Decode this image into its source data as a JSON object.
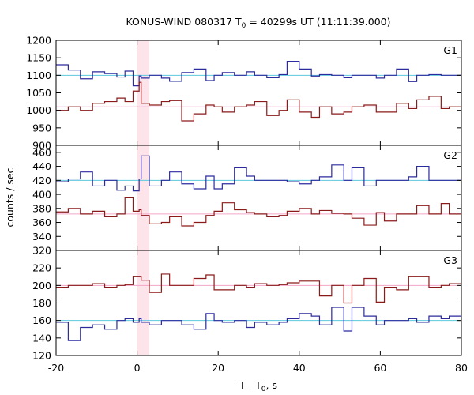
{
  "chart_data": {
    "type": "line",
    "title": {
      "prefix": "KONUS-WIND 080317 T",
      "sub": "0",
      "suffix": " = 40299s UT (11:11:39.000)"
    },
    "xlabel": {
      "prefix": "T - T",
      "sub": "0",
      "suffix": ", s"
    },
    "ylabel": "counts / sec",
    "xlim": [
      -20,
      80
    ],
    "x_ticks": [
      -20,
      0,
      20,
      40,
      60,
      80
    ],
    "x_tick_labels": [
      "-20",
      "0",
      "20",
      "40",
      "60",
      "80"
    ],
    "step_bins": [
      -20,
      -17,
      -14,
      -11,
      -8,
      -5,
      -3,
      -1,
      0.5,
      1,
      3,
      6,
      8,
      11,
      14,
      17,
      19,
      21,
      24,
      27,
      29,
      32,
      35,
      37,
      40,
      43,
      45,
      48,
      51,
      53,
      56,
      59,
      61,
      64,
      67,
      69,
      72,
      75,
      77,
      80
    ],
    "highlight_interval": [
      0,
      3
    ],
    "colors": {
      "blue": "#2b2b9e",
      "red": "#8b1a1a",
      "cyan": "#5bc8dc",
      "pink": "#f2a6c8",
      "band": "#fde3ea"
    },
    "panels": [
      {
        "label": "G1",
        "ylim": [
          900,
          1200
        ],
        "y_ticks": [
          900,
          950,
          1000,
          1050,
          1100,
          1150,
          1200
        ],
        "y_tick_labels": [
          "900",
          "950",
          "1000",
          "1050",
          "1100",
          "1150",
          "1200"
        ],
        "baselines": [
          {
            "name": "cyan",
            "y": 1100
          },
          {
            "name": "pink",
            "y": 1010
          }
        ],
        "series": [
          {
            "color": "blue",
            "values": [
              1130,
              1115,
              1090,
              1110,
              1105,
              1095,
              1112,
              1070,
              1098,
              1092,
              1100,
              1092,
              1083,
              1108,
              1118,
              1085,
              1100,
              1108,
              1100,
              1110,
              1100,
              1093,
              1102,
              1140,
              1118,
              1098,
              1102,
              1100,
              1093,
              1100,
              1100,
              1092,
              1100,
              1118,
              1082,
              1100,
              1102,
              1100,
              1100
            ]
          },
          {
            "color": "red",
            "values": [
              1000,
              1010,
              1000,
              1020,
              1025,
              1035,
              1025,
              1055,
              1080,
              1020,
              1015,
              1025,
              1028,
              970,
              990,
              1015,
              1010,
              995,
              1010,
              1015,
              1025,
              985,
              1000,
              1030,
              995,
              980,
              1010,
              990,
              995,
              1010,
              1015,
              995,
              995,
              1020,
              1005,
              1030,
              1040,
              1005,
              1010
            ]
          }
        ]
      },
      {
        "label": "G2",
        "ylim": [
          320,
          470
        ],
        "y_ticks": [
          320,
          340,
          360,
          380,
          400,
          420,
          440,
          460
        ],
        "y_tick_labels": [
          "320",
          "340",
          "360",
          "380",
          "400",
          "420",
          "440",
          "460"
        ],
        "baselines": [
          {
            "name": "cyan",
            "y": 420
          },
          {
            "name": "pink",
            "y": 372
          }
        ],
        "series": [
          {
            "color": "blue",
            "values": [
              418,
              422,
              432,
              412,
              420,
              406,
              412,
              405,
              422,
              455,
              412,
              420,
              432,
              415,
              408,
              426,
              408,
              415,
              438,
              426,
              420,
              420,
              420,
              418,
              415,
              420,
              425,
              442,
              420,
              438,
              412,
              420,
              420,
              420,
              425,
              440,
              420,
              420,
              420
            ]
          },
          {
            "color": "red",
            "values": [
              375,
              380,
              372,
              376,
              368,
              372,
              396,
              376,
              378,
              370,
              358,
              360,
              368,
              355,
              360,
              370,
              376,
              388,
              378,
              374,
              372,
              368,
              370,
              376,
              380,
              372,
              377,
              373,
              372,
              366,
              356,
              374,
              362,
              372,
              372,
              384,
              372,
              387,
              372
            ]
          }
        ]
      },
      {
        "label": "G3",
        "ylim": [
          120,
          240
        ],
        "y_ticks": [
          120,
          140,
          160,
          180,
          200,
          220
        ],
        "y_tick_labels": [
          "120",
          "140",
          "160",
          "180",
          "200",
          "220"
        ],
        "baselines": [
          {
            "name": "cyan",
            "y": 160
          },
          {
            "name": "pink",
            "y": 200
          }
        ],
        "series": [
          {
            "color": "blue",
            "values": [
              158,
              137,
              152,
              155,
              150,
              160,
              162,
              158,
              162,
              158,
              155,
              160,
              160,
              155,
              150,
              168,
              160,
              158,
              160,
              152,
              158,
              155,
              158,
              162,
              168,
              165,
              155,
              175,
              148,
              175,
              165,
              155,
              160,
              160,
              162,
              158,
              165,
              162,
              165
            ]
          },
          {
            "color": "red",
            "values": [
              198,
              200,
              200,
              202,
              198,
              200,
              201,
              210,
              210,
              206,
              192,
              213,
              200,
              200,
              208,
              212,
              195,
              195,
              200,
              198,
              202,
              200,
              201,
              203,
              205,
              205,
              188,
              200,
              180,
              200,
              208,
              181,
              198,
              195,
              210,
              210,
              198,
              200,
              202
            ]
          }
        ]
      }
    ]
  }
}
